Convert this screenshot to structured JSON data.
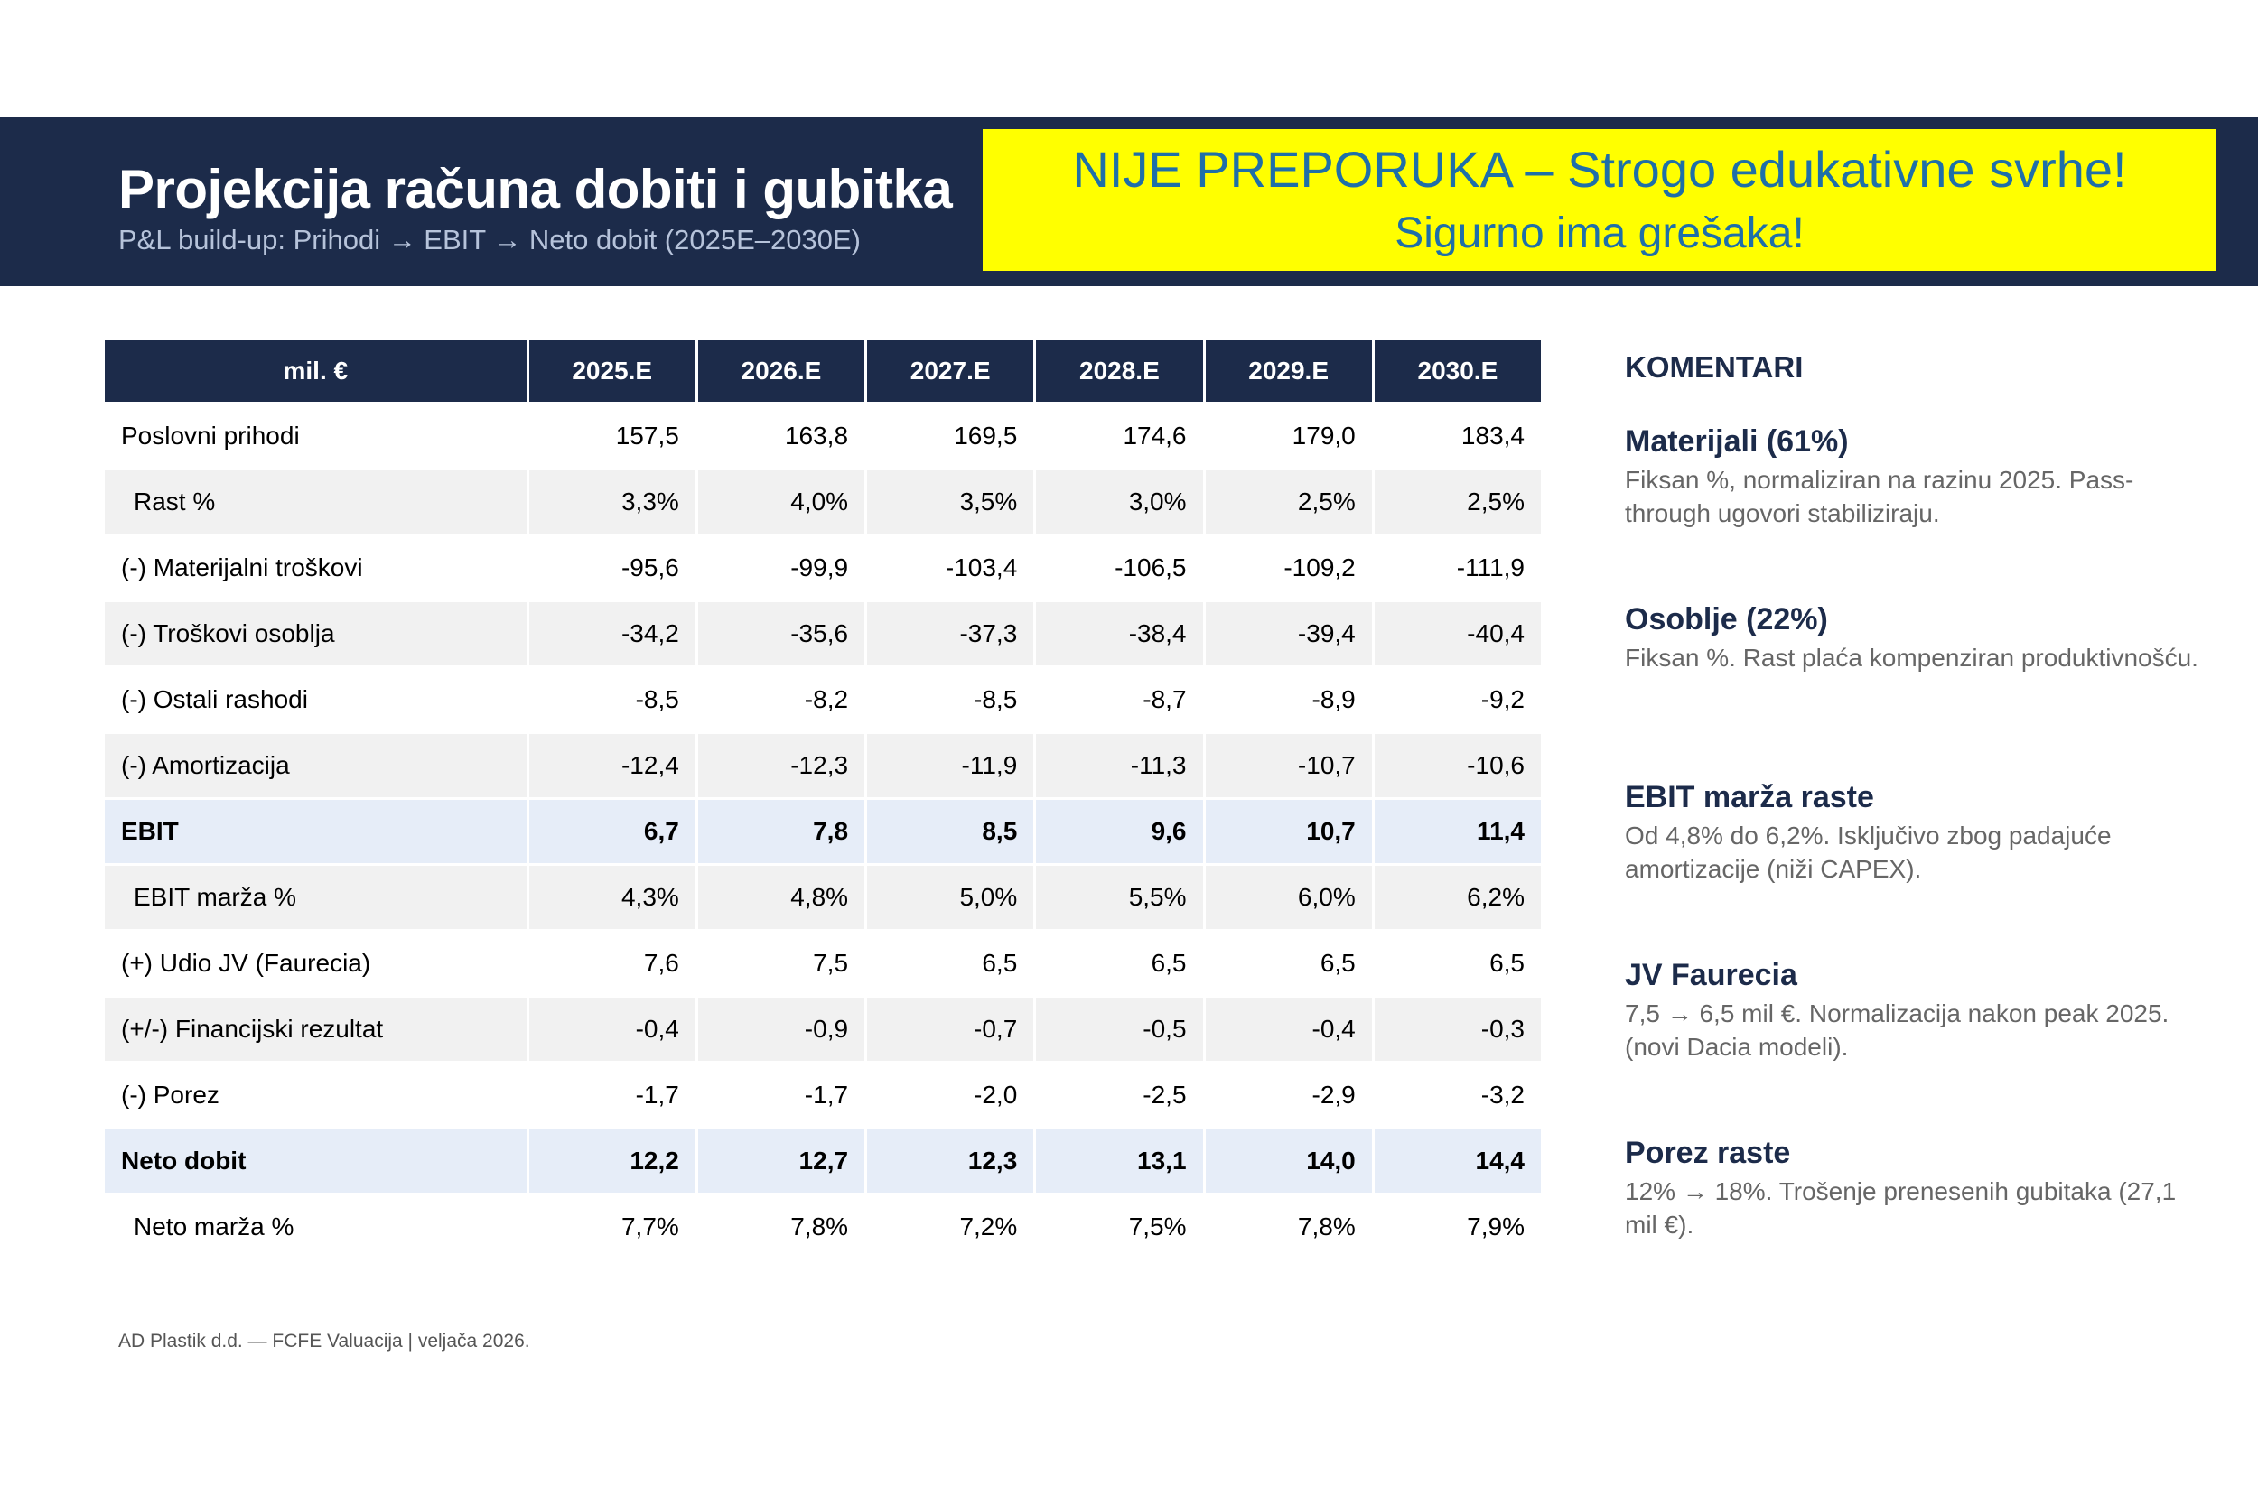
{
  "header": {
    "title": "Projekcija računa dobiti i gubitka",
    "subtitle": "P&L build-up: Prihodi → EBIT → Neto dobit (2025E–2030E)",
    "bg_color": "#1c2b4a"
  },
  "warning": {
    "line1": "NIJE PREPORUKA – Strogo edukativne svrhe!",
    "line2": "Sigurno ima grešaka!",
    "bg_color": "#ffff00",
    "text_color": "#1f6fa8"
  },
  "table": {
    "headers": [
      "mil. €",
      "2025.E",
      "2026.E",
      "2027.E",
      "2028.E",
      "2029.E",
      "2030.E"
    ],
    "rows": [
      {
        "label": "Poslovni prihodi",
        "values": [
          "157,5",
          "163,8",
          "169,5",
          "174,6",
          "179,0",
          "183,4"
        ]
      },
      {
        "label": "Rast %",
        "values": [
          "3,3%",
          "4,0%",
          "3,5%",
          "3,0%",
          "2,5%",
          "2,5%"
        ]
      },
      {
        "label": "(-) Materijalni troškovi",
        "values": [
          "-95,6",
          "-99,9",
          "-103,4",
          "-106,5",
          "-109,2",
          "-111,9"
        ]
      },
      {
        "label": "(-) Troškovi osoblja",
        "values": [
          "-34,2",
          "-35,6",
          "-37,3",
          "-38,4",
          "-39,4",
          "-40,4"
        ]
      },
      {
        "label": "(-) Ostali rashodi",
        "values": [
          "-8,5",
          "-8,2",
          "-8,5",
          "-8,7",
          "-8,9",
          "-9,2"
        ]
      },
      {
        "label": "(-) Amortizacija",
        "values": [
          "-12,4",
          "-12,3",
          "-11,9",
          "-11,3",
          "-10,7",
          "-10,6"
        ]
      },
      {
        "label": "EBIT",
        "values": [
          "6,7",
          "7,8",
          "8,5",
          "9,6",
          "10,7",
          "11,4"
        ]
      },
      {
        "label": "EBIT marža %",
        "values": [
          "4,3%",
          "4,8%",
          "5,0%",
          "5,5%",
          "6,0%",
          "6,2%"
        ]
      },
      {
        "label": "(+) Udio JV (Faurecia)",
        "values": [
          "7,6",
          "7,5",
          "6,5",
          "6,5",
          "6,5",
          "6,5"
        ]
      },
      {
        "label": "(+/-) Financijski rezultat",
        "values": [
          "-0,4",
          "-0,9",
          "-0,7",
          "-0,5",
          "-0,4",
          "-0,3"
        ]
      },
      {
        "label": "(-) Porez",
        "values": [
          "-1,7",
          "-1,7",
          "-2,0",
          "-2,5",
          "-2,9",
          "-3,2"
        ]
      },
      {
        "label": "Neto dobit",
        "values": [
          "12,2",
          "12,7",
          "12,3",
          "13,1",
          "14,0",
          "14,4"
        ]
      },
      {
        "label": "Neto marža %",
        "values": [
          "7,7%",
          "7,8%",
          "7,2%",
          "7,5%",
          "7,8%",
          "7,9%"
        ]
      }
    ]
  },
  "comments": {
    "heading": "KOMENTARI",
    "items": [
      {
        "title": "Materijali (61%)",
        "text": "Fiksan %, normaliziran na razinu 2025. Pass-through ugovori stabiliziraju."
      },
      {
        "title": "Osoblje (22%)",
        "text": "Fiksan %. Rast plaća kompenziran produktivnošću."
      },
      {
        "title": "EBIT marža raste",
        "text": "Od 4,8% do 6,2%. Isključivo zbog padajuće amortizacije (niži CAPEX)."
      },
      {
        "title": "JV Faurecia",
        "text": "7,5 → 6,5 mil €. Normalizacija nakon peak 2025. (novi Dacia modeli)."
      },
      {
        "title": "Porez raste",
        "text": "12% → 18%. Trošenje prenesenih gubitaka (27,1 mil €)."
      }
    ]
  },
  "footer": {
    "text": "AD Plastik d.d. — FCFE Valuacija  |  veljača 2026."
  }
}
